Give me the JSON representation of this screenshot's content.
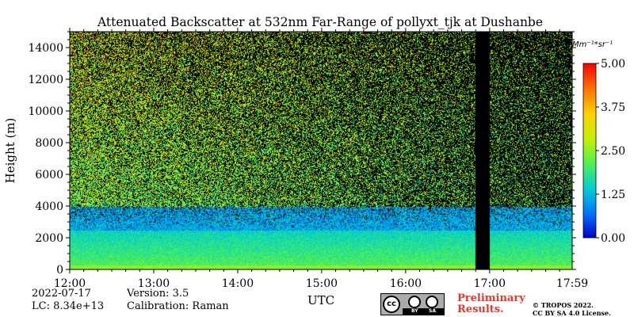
{
  "chart_data": {
    "type": "heatmap",
    "title": "Attenuated Backscatter at 532nm Far-Range of pollyxt_tjk at Dushanbe",
    "xlabel": "UTC",
    "ylabel": "Height (m)",
    "x_ticks": [
      "12:00",
      "13:00",
      "14:00",
      "15:00",
      "16:00",
      "17:00",
      "17:59"
    ],
    "x_range_hours": [
      12.0,
      17.983
    ],
    "y_ticks": [
      0,
      2000,
      4000,
      6000,
      8000,
      10000,
      12000,
      14000
    ],
    "ylim": [
      0,
      15000
    ],
    "colorbar": {
      "label": "Mm⁻¹*sr⁻¹",
      "ticks": [
        "0.00",
        "1.25",
        "2.50",
        "3.75",
        "5.00"
      ],
      "range": [
        0,
        5
      ],
      "colormap": "jet",
      "colors": [
        "#0000c8",
        "#0078ff",
        "#00d0d0",
        "#50f050",
        "#c8f000",
        "#ffd000",
        "#ff7000",
        "#ff0000"
      ]
    },
    "no_data_periods": [
      [
        16.83,
        17.0
      ]
    ],
    "profile_notes": {
      "surface_layer_top_m": 300,
      "aerosol_layer_top_m": 2500,
      "noise_start_m": 4000
    }
  },
  "footer": {
    "date": "2022-07-17",
    "lc": "LC: 8.34e+13",
    "version": "Version: 3.5",
    "calibration": "Calibration: Raman",
    "preliminary_line1": "Preliminary",
    "preliminary_line2": "Results.",
    "copyright_line1": "© TROPOS 2022.",
    "copyright_line2": "CC BY SA 4.0 License."
  },
  "license_badge": {
    "cc": "cc",
    "by": "BY",
    "sa": "SA"
  }
}
